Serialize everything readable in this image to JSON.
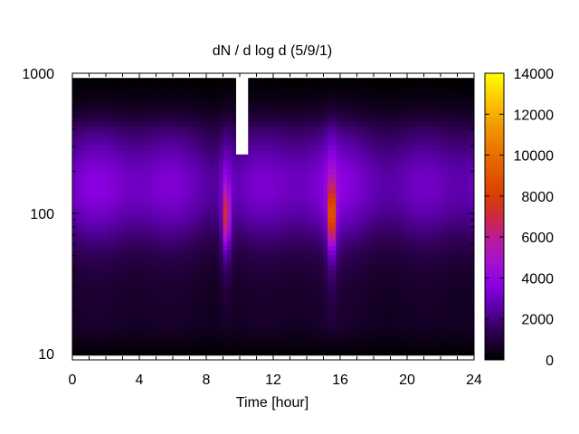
{
  "chart_data": {
    "type": "heatmap",
    "title": "dN / d log d (5/9/1)",
    "xlabel": "Time [hour]",
    "ylabel": "",
    "xlim": [
      0,
      24
    ],
    "ylim": [
      9,
      1000
    ],
    "y_scale": "log",
    "x_ticks": [
      "0",
      "4",
      "8",
      "12",
      "16",
      "20",
      "24"
    ],
    "y_ticks": [
      "10",
      "100",
      "1000"
    ],
    "colorbar": {
      "range": [
        0,
        14000
      ],
      "ticks": [
        "0",
        "2000",
        "4000",
        "6000",
        "8000",
        "10000",
        "12000",
        "14000"
      ],
      "colormap": "gnuplot (black-purple-red-orange-yellow)"
    },
    "features": {
      "measured_diameter_range": [
        10,
        900
      ],
      "base_level_range": [
        1000,
        4000
      ],
      "peaks": [
        {
          "time": 9.2,
          "diameter": 100,
          "value": 7500
        },
        {
          "time": 15.5,
          "diameter": 100,
          "value": 10000
        }
      ],
      "data_gap": [
        {
          "time_start": 9.7,
          "time_end": 10.6,
          "diameter_start": 260,
          "diameter_end": 1000
        },
        {
          "time_start": 9.7,
          "time_end": 10.6,
          "diameter_start": 10,
          "diameter_end": 1000,
          "partial": true
        }
      ]
    }
  }
}
